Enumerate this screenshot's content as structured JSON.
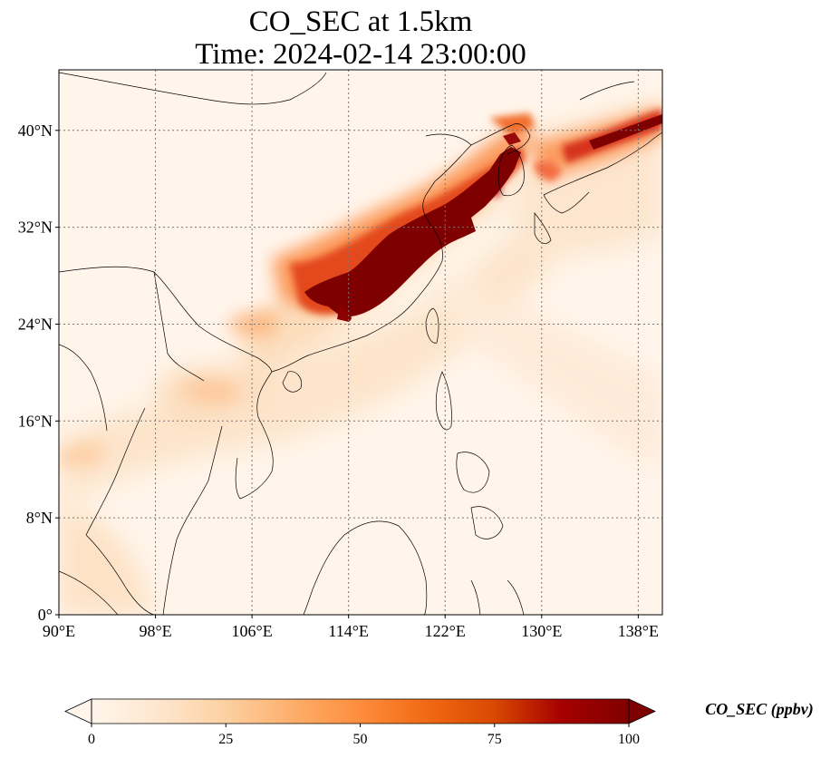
{
  "title": {
    "line1": "CO_SEC at 1.5km",
    "line2": "Time: 2024-02-14 23:00:00"
  },
  "map": {
    "projection": "PlateCarree",
    "lon_range": [
      90,
      140
    ],
    "lat_range": [
      0,
      45
    ],
    "lon_ticks": [
      {
        "value": 90,
        "label": "90°E"
      },
      {
        "value": 98,
        "label": "98°E"
      },
      {
        "value": 106,
        "label": "106°E"
      },
      {
        "value": 114,
        "label": "114°E"
      },
      {
        "value": 122,
        "label": "122°E"
      },
      {
        "value": 130,
        "label": "130°E"
      },
      {
        "value": 138,
        "label": "138°E"
      }
    ],
    "lat_ticks": [
      {
        "value": 0,
        "label": "0°"
      },
      {
        "value": 8,
        "label": "8°N"
      },
      {
        "value": 16,
        "label": "16°N"
      },
      {
        "value": 24,
        "label": "24°N"
      },
      {
        "value": 32,
        "label": "32°N"
      },
      {
        "value": 40,
        "label": "40°N"
      }
    ],
    "gridlines": "dotted",
    "background_color": "#fff5eb",
    "plume_regions": [
      {
        "name": "yangtze-delta-plume",
        "level": 100,
        "lon": [
          111,
          126
        ],
        "lat": [
          25,
          39
        ]
      },
      {
        "name": "korea-japan-plume",
        "level": 70,
        "lon": [
          129,
          140
        ],
        "lat": [
          37,
          42
        ]
      },
      {
        "name": "north-china-halo",
        "level": 45,
        "lon": [
          107,
          128
        ],
        "lat": [
          22,
          40
        ]
      }
    ]
  },
  "colorbar": {
    "colormap": "OrRd",
    "colors": [
      "#fff5eb",
      "#fee6ce",
      "#fdd0a2",
      "#fdae6b",
      "#fd8d3c",
      "#f16913",
      "#d94801",
      "#a60000",
      "#7f0000"
    ],
    "range": [
      0,
      100
    ],
    "extend": "both",
    "ticks": [
      {
        "value": 0,
        "label": "0"
      },
      {
        "value": 25,
        "label": "25"
      },
      {
        "value": 50,
        "label": "50"
      },
      {
        "value": 75,
        "label": "75"
      },
      {
        "value": 100,
        "label": "100"
      }
    ],
    "label": "CO_SEC (ppbv)"
  }
}
